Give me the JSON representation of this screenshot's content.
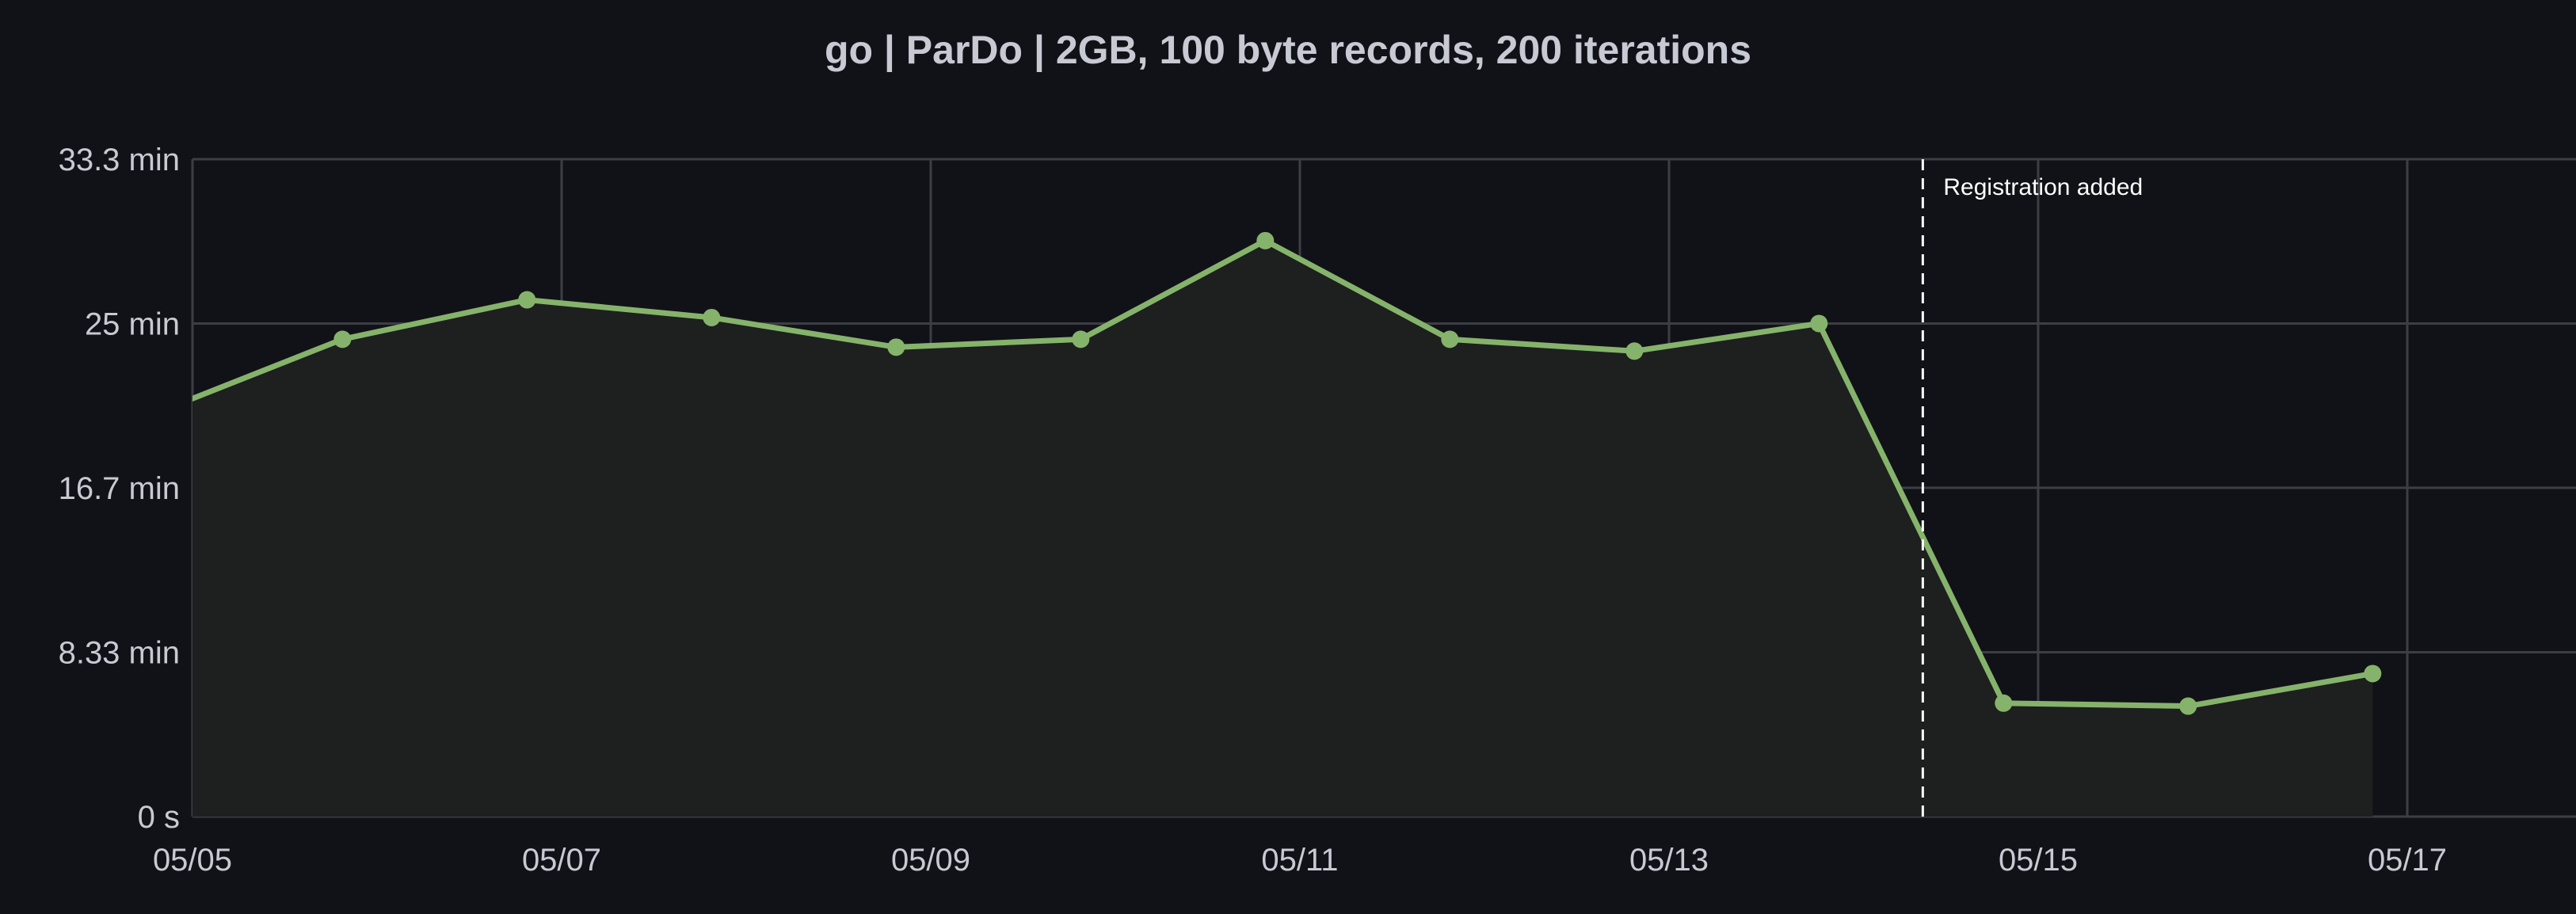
{
  "chart_data": {
    "type": "area",
    "title": "go | ParDo | 2GB, 100 byte records, 200 iterations",
    "xlabel": "",
    "ylabel": "",
    "ylim": [
      0,
      33.33
    ],
    "y_unit": "min",
    "y_ticks": [
      {
        "value": 0,
        "label": "0 s"
      },
      {
        "value": 8.33,
        "label": "8.33 min"
      },
      {
        "value": 16.67,
        "label": "16.7 min"
      },
      {
        "value": 25,
        "label": "25 min"
      },
      {
        "value": 33.33,
        "label": "33.3 min"
      }
    ],
    "xlim": [
      "05/05 00:00",
      "05/18 00:00"
    ],
    "x_ticks": [
      "05/05",
      "05/07",
      "05/09",
      "05/11",
      "05/13",
      "05/15",
      "05/17"
    ],
    "grid": true,
    "series": [
      {
        "color": "#86b36b",
        "points": [
          {
            "x": "05/04 19:30",
            "y": 20.5
          },
          {
            "x": "05/05 19:30",
            "y": 24.2
          },
          {
            "x": "05/06 19:30",
            "y": 26.2
          },
          {
            "x": "05/07 19:30",
            "y": 25.3
          },
          {
            "x": "05/08 19:30",
            "y": 23.8
          },
          {
            "x": "05/09 19:30",
            "y": 24.2
          },
          {
            "x": "05/10 19:30",
            "y": 29.2
          },
          {
            "x": "05/11 19:30",
            "y": 24.2
          },
          {
            "x": "05/12 19:30",
            "y": 23.6
          },
          {
            "x": "05/13 19:30",
            "y": 25.0
          },
          {
            "x": "05/14 19:30",
            "y": 5.75
          },
          {
            "x": "05/15 19:30",
            "y": 5.6
          },
          {
            "x": "05/16 19:30",
            "y": 7.25
          }
        ]
      }
    ],
    "annotations": [
      {
        "x": "05/14 09:00",
        "text": "Registration added",
        "style": "dashed-vertical",
        "color": "#ffffff"
      }
    ]
  }
}
